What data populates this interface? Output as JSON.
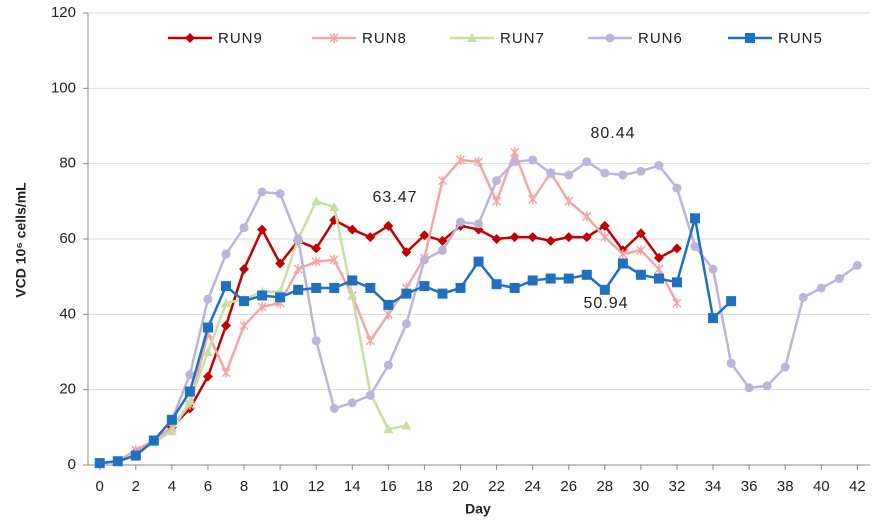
{
  "chart_data": {
    "type": "line",
    "xlabel": "Day",
    "ylabel": "VCD 10⁶ cells/mL",
    "x": [
      0,
      1,
      2,
      3,
      4,
      5,
      6,
      7,
      8,
      9,
      10,
      11,
      12,
      13,
      14,
      15,
      16,
      17,
      18,
      19,
      20,
      21,
      22,
      23,
      24,
      25,
      26,
      27,
      28,
      29,
      30,
      31,
      32,
      33,
      34,
      35,
      36,
      37,
      38,
      39,
      40,
      41,
      42
    ],
    "xlim": [
      -0.65,
      42.7
    ],
    "xticks": [
      0,
      2,
      4,
      6,
      8,
      10,
      12,
      14,
      16,
      18,
      20,
      22,
      24,
      26,
      28,
      30,
      32,
      34,
      36,
      38,
      40,
      42
    ],
    "ylim": [
      0,
      120
    ],
    "yticks": [
      0,
      20,
      40,
      60,
      80,
      100,
      120
    ],
    "grid": true,
    "legend": "top",
    "annotations": [
      "63.47",
      "80.44",
      "50.94"
    ],
    "series": [
      {
        "name": "RUN9",
        "color": "#c00000",
        "marker": "diamond",
        "values": [
          0.5,
          1,
          3.5,
          6.5,
          10,
          15,
          23.5,
          37,
          52,
          62.5,
          53.5,
          59.5,
          57.5,
          65,
          62.5,
          60.5,
          63.5,
          56.5,
          61,
          59.5,
          63.5,
          62.5,
          60,
          60.5,
          60.5,
          59.5,
          60.5,
          60.5,
          63.5,
          57,
          61.5,
          55,
          57.5,
          null,
          null,
          null,
          null,
          null,
          null,
          null,
          null,
          null,
          null
        ]
      },
      {
        "name": "RUN8",
        "color": "#f2a7a7",
        "marker": "x",
        "values": [
          0.5,
          1,
          4,
          6.5,
          10,
          16,
          35,
          24.5,
          37,
          42,
          43,
          52,
          54,
          54.5,
          45,
          33,
          40,
          47,
          55,
          75.5,
          81,
          80.5,
          70,
          83,
          70.5,
          77.5,
          70,
          66,
          60.5,
          56,
          57,
          52,
          43,
          null,
          null,
          null,
          null,
          null,
          null,
          null,
          null,
          null,
          null
        ]
      },
      {
        "name": "RUN7",
        "color": "#c6dfa2",
        "marker": "triangle",
        "values": [
          0.5,
          1,
          3,
          6,
          9,
          17,
          30,
          43,
          44,
          46,
          46,
          60,
          70,
          68.5,
          45,
          19,
          9.5,
          10.5,
          null,
          null,
          null,
          null,
          null,
          null,
          null,
          null,
          null,
          null,
          null,
          null,
          null,
          null,
          null,
          null,
          null,
          null,
          null,
          null,
          null,
          null,
          null,
          null,
          null
        ]
      },
      {
        "name": "RUN6",
        "color": "#bcb4da",
        "marker": "circle",
        "values": [
          0.5,
          1,
          3,
          6.5,
          12,
          24,
          44,
          56,
          63,
          72.5,
          72,
          60,
          33,
          15,
          16.5,
          18.5,
          26.5,
          37.5,
          54.5,
          57,
          64.5,
          64,
          75.5,
          80.5,
          81,
          77.5,
          77,
          80.5,
          77.5,
          77,
          78,
          79.5,
          73.5,
          58,
          52,
          27,
          20.5,
          21,
          26,
          44.5,
          47,
          49.5,
          53
        ]
      },
      {
        "name": "RUN5",
        "color": "#1f70c1",
        "marker": "square",
        "values": [
          0.5,
          1,
          2.5,
          6.5,
          12,
          19.5,
          36.5,
          47.5,
          43.5,
          45,
          44.5,
          46.5,
          47,
          47,
          49,
          47,
          42.5,
          45.5,
          47.5,
          45.5,
          47,
          54,
          48,
          47,
          49,
          49.5,
          49.5,
          50.5,
          46.5,
          53.5,
          50.5,
          49.5,
          48.5,
          65.5,
          39,
          43.5,
          null,
          null,
          null,
          null,
          null,
          null,
          null
        ]
      }
    ]
  }
}
